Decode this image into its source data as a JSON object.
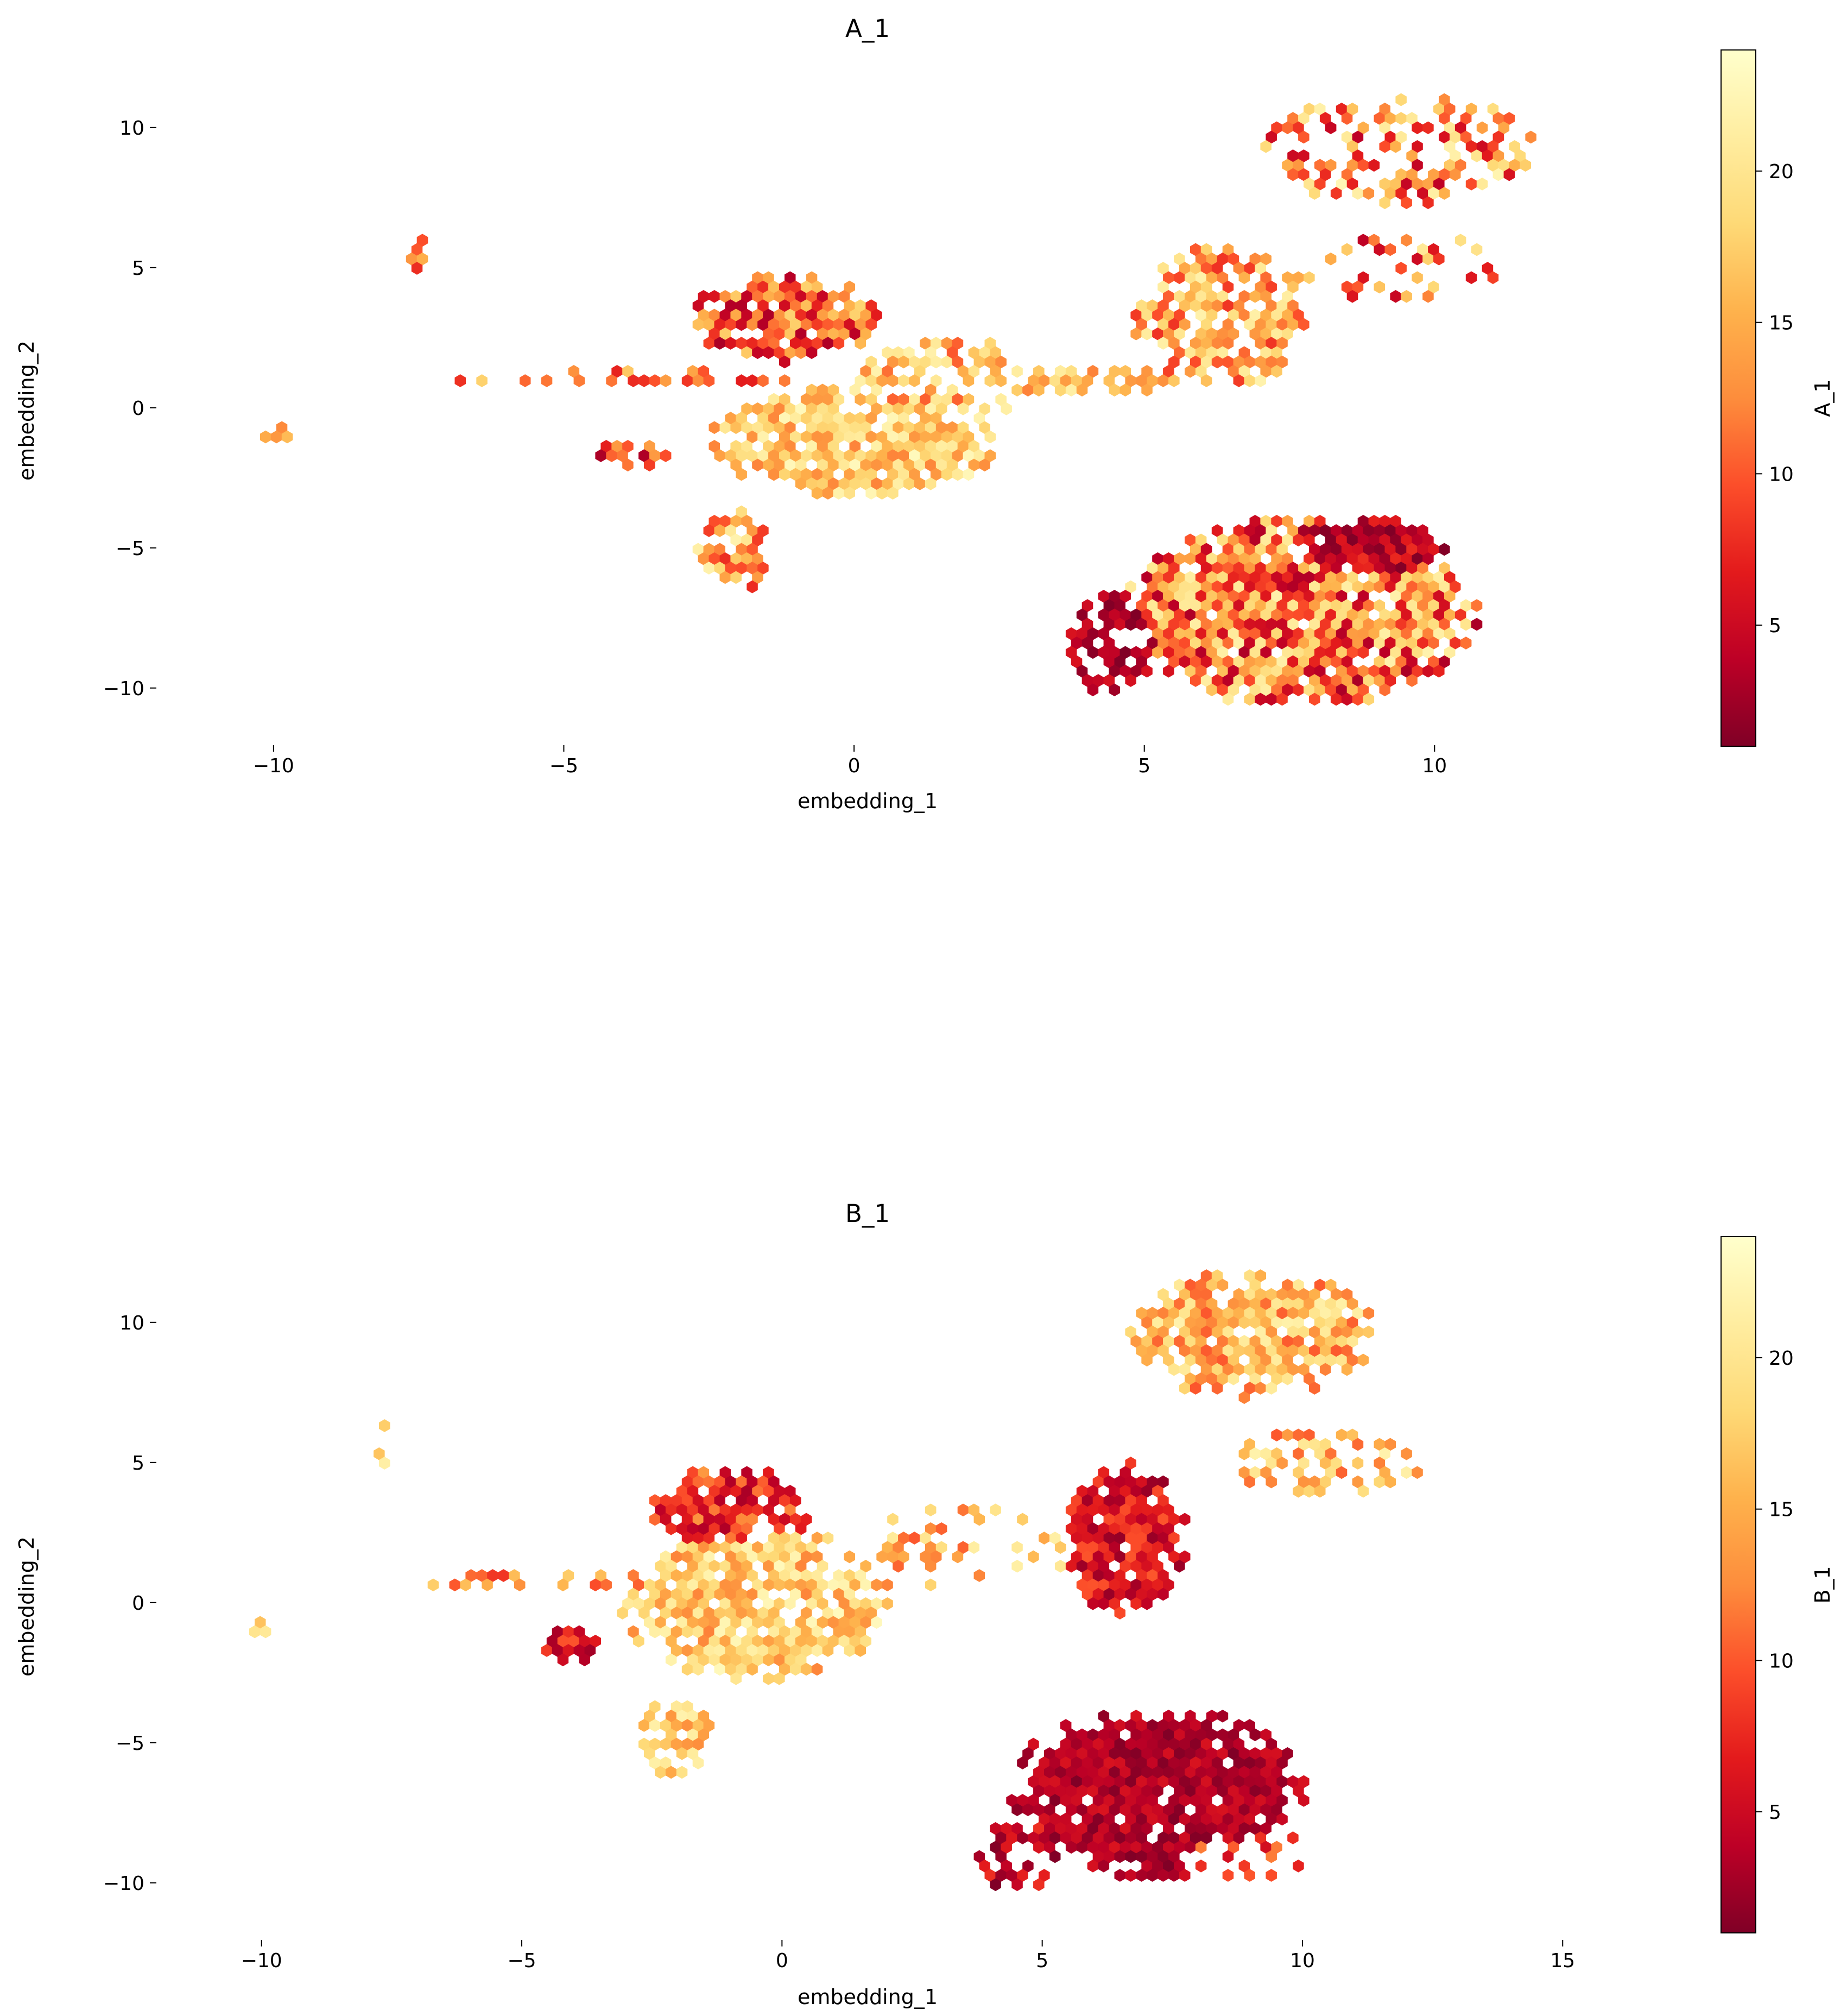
{
  "colormap": {
    "name": "YlOrRd_r",
    "stops": [
      "#800026",
      "#bd0026",
      "#e31a1c",
      "#fc4e2a",
      "#fd8d3c",
      "#feb24c",
      "#fed976",
      "#ffeda0",
      "#ffffcc"
    ]
  },
  "chart_data": [
    {
      "type": "hexbin",
      "title": "A_1",
      "xlabel": "embedding_1",
      "ylabel": "embedding_2",
      "xlim": [
        -12,
        14
      ],
      "ylim": [
        -12,
        13
      ],
      "xticks": [
        -10,
        -5,
        0,
        5,
        10
      ],
      "xtick_labels": [
        "−10",
        "−5",
        "0",
        "5",
        "10"
      ],
      "yticks": [
        -10,
        -5,
        0,
        5,
        10
      ],
      "ytick_labels": [
        "−10",
        "−5",
        "0",
        "5",
        "10"
      ],
      "colorbar": {
        "label": "A_1",
        "range": [
          1,
          24
        ],
        "ticks": [
          5,
          10,
          15,
          20
        ],
        "tick_labels": [
          "5",
          "10",
          "15",
          "20"
        ]
      },
      "clusters": [
        {
          "cx": 7.7,
          "cy": -7.3,
          "rx": 3.1,
          "ry": 3.4,
          "low": 3,
          "high": 22,
          "dens": 0.96
        },
        {
          "cx": 8.6,
          "cy": -5.2,
          "rx": 1.6,
          "ry": 1.3,
          "low": 1,
          "high": 8,
          "dens": 0.95
        },
        {
          "cx": 4.5,
          "cy": -8.5,
          "rx": 0.8,
          "ry": 1.9,
          "low": 1,
          "high": 6,
          "dens": 0.7
        },
        {
          "cx": 0.0,
          "cy": -1.2,
          "rx": 2.5,
          "ry": 2.0,
          "low": 12,
          "high": 23,
          "dens": 0.85
        },
        {
          "cx": -1.2,
          "cy": 3.2,
          "rx": 1.6,
          "ry": 1.6,
          "low": 3,
          "high": 18,
          "dens": 0.85
        },
        {
          "cx": 1.5,
          "cy": 1.0,
          "rx": 1.6,
          "ry": 1.6,
          "low": 10,
          "high": 22,
          "dens": 0.7
        },
        {
          "cx": -2.0,
          "cy": -5.0,
          "rx": 0.7,
          "ry": 1.5,
          "low": 6,
          "high": 22,
          "dens": 0.7
        },
        {
          "cx": -4.0,
          "cy": 1.0,
          "rx": 3.0,
          "ry": 0.35,
          "low": 5,
          "high": 18,
          "dens": 0.55
        },
        {
          "cx": -3.8,
          "cy": -1.5,
          "rx": 0.6,
          "ry": 0.8,
          "low": 3,
          "high": 14,
          "dens": 0.6
        },
        {
          "cx": -10.0,
          "cy": -0.9,
          "rx": 0.35,
          "ry": 0.3,
          "low": 12,
          "high": 22,
          "dens": 0.8
        },
        {
          "cx": -7.6,
          "cy": 5.5,
          "rx": 0.2,
          "ry": 1.2,
          "low": 6,
          "high": 16,
          "dens": 0.45
        },
        {
          "cx": 4.0,
          "cy": 1.0,
          "rx": 1.8,
          "ry": 0.5,
          "low": 12,
          "high": 22,
          "dens": 0.5
        },
        {
          "cx": 6.3,
          "cy": 3.2,
          "rx": 1.5,
          "ry": 2.6,
          "low": 8,
          "high": 22,
          "dens": 0.75
        },
        {
          "cx": 9.4,
          "cy": 9.2,
          "rx": 2.4,
          "ry": 2.0,
          "low": 4,
          "high": 23,
          "dens": 0.5
        },
        {
          "cx": 9.5,
          "cy": 5.0,
          "rx": 2.0,
          "ry": 1.3,
          "low": 3,
          "high": 22,
          "dens": 0.25
        }
      ]
    },
    {
      "type": "hexbin",
      "title": "B_1",
      "xlabel": "embedding_1",
      "ylabel": "embedding_2",
      "xlim": [
        -12,
        17
      ],
      "ylim": [
        -12,
        13
      ],
      "xticks": [
        -10,
        -5,
        0,
        5,
        10,
        15
      ],
      "xtick_labels": [
        "−10",
        "−5",
        "0",
        "5",
        "10",
        "15"
      ],
      "yticks": [
        -10,
        -5,
        0,
        5,
        10
      ],
      "ytick_labels": [
        "−10",
        "−5",
        "0",
        "5",
        "10"
      ],
      "colorbar": {
        "label": "B_1",
        "range": [
          1,
          24
        ],
        "ticks": [
          5,
          10,
          15,
          20
        ],
        "tick_labels": [
          "5",
          "10",
          "15",
          "20"
        ]
      },
      "clusters": [
        {
          "cx": 7.2,
          "cy": -6.8,
          "rx": 2.9,
          "ry": 3.1,
          "low": 1,
          "high": 6,
          "dens": 0.92
        },
        {
          "cx": 8.8,
          "cy": -9.0,
          "rx": 1.6,
          "ry": 0.8,
          "low": 4,
          "high": 12,
          "dens": 0.35
        },
        {
          "cx": 4.5,
          "cy": -9.0,
          "rx": 0.9,
          "ry": 1.5,
          "low": 1,
          "high": 8,
          "dens": 0.6
        },
        {
          "cx": -0.5,
          "cy": 0.0,
          "rx": 2.6,
          "ry": 2.8,
          "low": 12,
          "high": 23,
          "dens": 0.85
        },
        {
          "cx": -1.0,
          "cy": 3.4,
          "rx": 1.6,
          "ry": 1.5,
          "low": 3,
          "high": 14,
          "dens": 0.85
        },
        {
          "cx": -2.0,
          "cy": -4.8,
          "rx": 0.8,
          "ry": 1.5,
          "low": 12,
          "high": 22,
          "dens": 0.7
        },
        {
          "cx": -4.5,
          "cy": 0.8,
          "rx": 2.6,
          "ry": 0.35,
          "low": 8,
          "high": 20,
          "dens": 0.5
        },
        {
          "cx": -4.0,
          "cy": -1.5,
          "rx": 0.6,
          "ry": 0.8,
          "low": 2,
          "high": 10,
          "dens": 0.55
        },
        {
          "cx": 6.6,
          "cy": 2.2,
          "rx": 1.2,
          "ry": 2.8,
          "low": 2,
          "high": 10,
          "dens": 0.85
        },
        {
          "cx": 9.0,
          "cy": 9.6,
          "rx": 2.4,
          "ry": 2.3,
          "low": 10,
          "high": 22,
          "dens": 0.8
        },
        {
          "cx": 10.5,
          "cy": 5.0,
          "rx": 1.9,
          "ry": 1.2,
          "low": 10,
          "high": 22,
          "dens": 0.5
        },
        {
          "cx": 3.5,
          "cy": 2.0,
          "rx": 2.2,
          "ry": 1.5,
          "low": 10,
          "high": 22,
          "dens": 0.3
        },
        {
          "cx": -10.1,
          "cy": -0.9,
          "rx": 0.3,
          "ry": 0.3,
          "low": 12,
          "high": 22,
          "dens": 0.8
        },
        {
          "cx": -7.6,
          "cy": 5.6,
          "rx": 0.2,
          "ry": 1.0,
          "low": 14,
          "high": 22,
          "dens": 0.45
        }
      ]
    }
  ]
}
